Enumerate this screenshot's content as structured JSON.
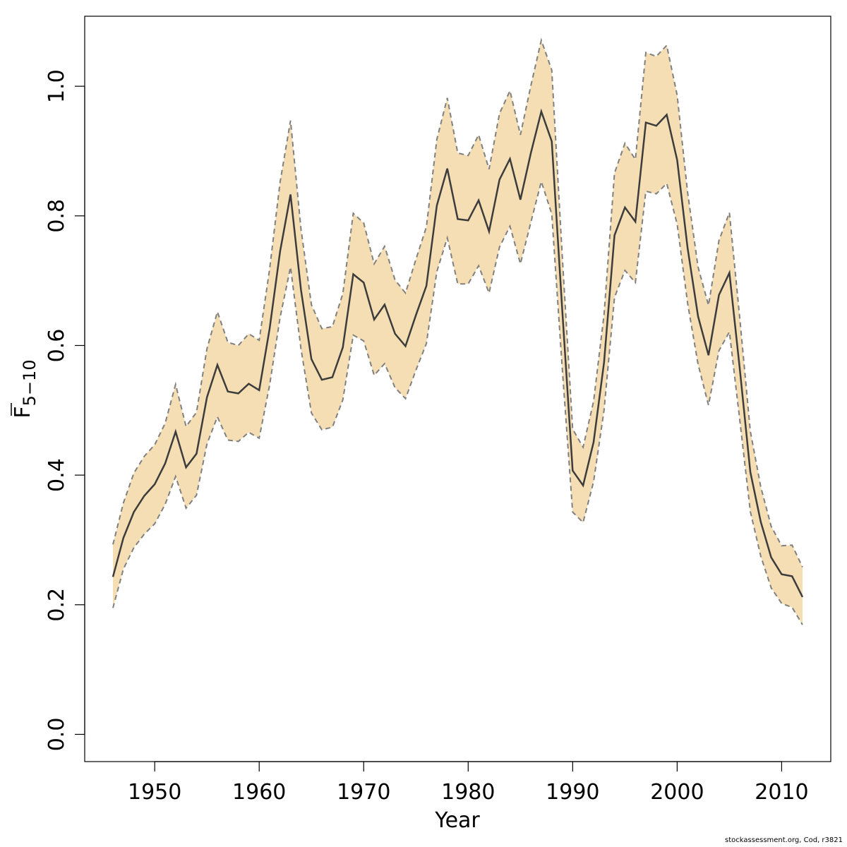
{
  "chart_data": {
    "type": "area",
    "xlabel": "Year",
    "ylabel": {
      "main": "F",
      "subscript": "5−10"
    },
    "xlim": [
      1943.3,
      2014.7
    ],
    "ylim": [
      -0.042,
      1.108
    ],
    "xticks": [
      1950,
      1960,
      1970,
      1980,
      1990,
      2000,
      2010
    ],
    "yticks": [
      0.0,
      0.2,
      0.4,
      0.6,
      0.8,
      1.0
    ],
    "ytick_labels": [
      "0.0",
      "0.2",
      "0.4",
      "0.6",
      "0.8",
      "1.0"
    ],
    "band_fill": "#f5deb3",
    "band_edge_color": "#808080",
    "line_color": "#3c3c3c",
    "x": [
      1946,
      1947,
      1948,
      1949,
      1950,
      1951,
      1952,
      1953,
      1954,
      1955,
      1956,
      1957,
      1958,
      1959,
      1960,
      1961,
      1962,
      1963,
      1964,
      1965,
      1966,
      1967,
      1968,
      1969,
      1970,
      1971,
      1972,
      1973,
      1974,
      1975,
      1976,
      1977,
      1978,
      1979,
      1980,
      1981,
      1982,
      1983,
      1984,
      1985,
      1986,
      1987,
      1988,
      1989,
      1990,
      1991,
      1992,
      1993,
      1994,
      1995,
      1996,
      1997,
      1998,
      1999,
      2000,
      2001,
      2002,
      2003,
      2004,
      2005,
      2006,
      2007,
      2008,
      2009,
      2010,
      2011,
      2012
    ],
    "series": [
      {
        "name": "estimate",
        "values": [
          0.243,
          0.303,
          0.343,
          0.368,
          0.386,
          0.418,
          0.467,
          0.412,
          0.433,
          0.52,
          0.57,
          0.529,
          0.526,
          0.541,
          0.531,
          0.626,
          0.745,
          0.833,
          0.686,
          0.579,
          0.547,
          0.551,
          0.597,
          0.71,
          0.697,
          0.64,
          0.663,
          0.618,
          0.599,
          0.647,
          0.692,
          0.816,
          0.873,
          0.795,
          0.793,
          0.824,
          0.776,
          0.856,
          0.888,
          0.825,
          0.897,
          0.961,
          0.915,
          0.656,
          0.407,
          0.384,
          0.451,
          0.574,
          0.77,
          0.813,
          0.791,
          0.944,
          0.939,
          0.956,
          0.886,
          0.75,
          0.645,
          0.585,
          0.678,
          0.712,
          0.563,
          0.405,
          0.328,
          0.273,
          0.247,
          0.244,
          0.212
        ]
      },
      {
        "name": "upper",
        "values": [
          0.293,
          0.357,
          0.403,
          0.429,
          0.447,
          0.48,
          0.54,
          0.475,
          0.497,
          0.595,
          0.652,
          0.605,
          0.6,
          0.618,
          0.608,
          0.718,
          0.852,
          0.947,
          0.78,
          0.663,
          0.626,
          0.629,
          0.68,
          0.804,
          0.789,
          0.726,
          0.753,
          0.701,
          0.681,
          0.733,
          0.783,
          0.918,
          0.982,
          0.897,
          0.893,
          0.925,
          0.872,
          0.958,
          0.993,
          0.925,
          1.001,
          1.071,
          1.025,
          0.74,
          0.471,
          0.443,
          0.514,
          0.648,
          0.866,
          0.912,
          0.887,
          1.052,
          1.046,
          1.063,
          0.986,
          0.836,
          0.721,
          0.662,
          0.762,
          0.805,
          0.641,
          0.468,
          0.382,
          0.321,
          0.291,
          0.292,
          0.258
        ]
      },
      {
        "name": "lower",
        "values": [
          0.195,
          0.255,
          0.288,
          0.309,
          0.325,
          0.355,
          0.398,
          0.349,
          0.369,
          0.448,
          0.49,
          0.454,
          0.452,
          0.466,
          0.457,
          0.539,
          0.643,
          0.721,
          0.595,
          0.496,
          0.47,
          0.474,
          0.516,
          0.616,
          0.607,
          0.554,
          0.572,
          0.535,
          0.518,
          0.562,
          0.603,
          0.714,
          0.766,
          0.695,
          0.695,
          0.723,
          0.681,
          0.752,
          0.784,
          0.726,
          0.79,
          0.853,
          0.803,
          0.566,
          0.343,
          0.327,
          0.39,
          0.5,
          0.674,
          0.716,
          0.697,
          0.838,
          0.834,
          0.85,
          0.787,
          0.665,
          0.571,
          0.508,
          0.592,
          0.621,
          0.484,
          0.344,
          0.275,
          0.226,
          0.202,
          0.196,
          0.169
        ]
      }
    ]
  },
  "footer": "stockassessment.org, Cod, r3821"
}
